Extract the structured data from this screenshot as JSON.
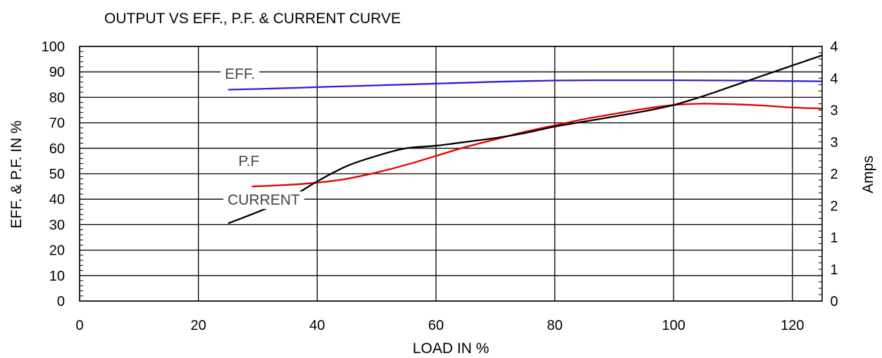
{
  "chart_data": {
    "type": "line",
    "title": "OUTPUT VS EFF., P.F. & CURRENT CURVE",
    "xlabel": "LOAD IN %",
    "ylabel": "EFF. & P.F. IN %",
    "y2label": "Amps",
    "xlim": [
      0,
      125
    ],
    "ylim": [
      0,
      100
    ],
    "x_ticks": [
      "0",
      "20",
      "40",
      "60",
      "80",
      "100",
      "120"
    ],
    "y_ticks": [
      "0",
      "10",
      "20",
      "30",
      "40",
      "50",
      "60",
      "70",
      "80",
      "90",
      "100"
    ],
    "y2_ticks": [
      "0",
      "1",
      "1",
      "2",
      "2",
      "3",
      "3",
      "4",
      "4"
    ],
    "grid": true,
    "series": [
      {
        "name": "EFF.",
        "color": "#2a1fd6",
        "x": [
          25,
          30,
          40,
          50,
          60,
          70,
          80,
          90,
          100,
          110,
          120,
          125
        ],
        "y": [
          83,
          83.3,
          84,
          84.7,
          85.4,
          86.1,
          86.6,
          86.7,
          86.7,
          86.6,
          86.4,
          86.3
        ]
      },
      {
        "name": "P.F",
        "color": "#e00000",
        "x": [
          29,
          35,
          40,
          45,
          50,
          55,
          60,
          65,
          70,
          75,
          80,
          85,
          90,
          95,
          100,
          105,
          110,
          115,
          120,
          125
        ],
        "y": [
          45,
          45.6,
          46.5,
          48,
          50.5,
          53.5,
          57,
          60.5,
          63.5,
          66.5,
          69,
          71.5,
          73.5,
          75.5,
          77,
          77.5,
          77.3,
          76.8,
          76,
          75.6
        ]
      },
      {
        "name": "CURRENT",
        "color": "#000000",
        "x": [
          25,
          30,
          35,
          40,
          45,
          50,
          55,
          60,
          65,
          70,
          75,
          80,
          85,
          90,
          95,
          100,
          105,
          110,
          115,
          120,
          125
        ],
        "y": [
          30.5,
          35,
          40,
          47,
          53,
          57,
          60,
          61,
          62.5,
          64,
          66,
          68.5,
          70.5,
          72.5,
          74.5,
          77,
          80.5,
          84.5,
          88.5,
          92.5,
          96.5
        ]
      }
    ]
  }
}
